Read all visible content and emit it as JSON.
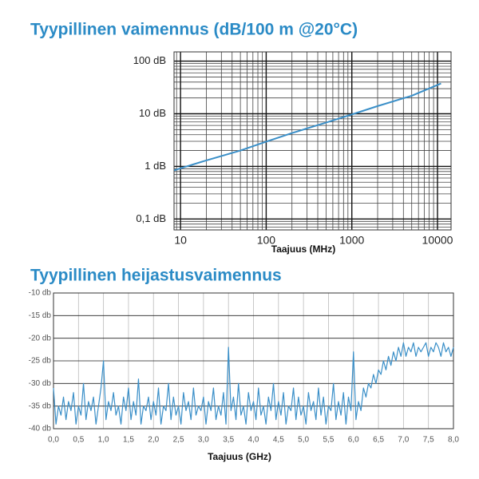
{
  "chart_data": [
    {
      "type": "line",
      "title": "Tyypillinen vaimennus (dB/100 m @20°C)",
      "xlabel": "Taajuus (MHz)",
      "xscale": "log",
      "yscale": "log",
      "grid": true,
      "minor_grid": true,
      "color": "#3a8fc8",
      "xlim": [
        8.4,
        14400
      ],
      "ylim": [
        0.062,
        150
      ],
      "xticks": [
        10,
        100,
        1000,
        10000
      ],
      "yticks": [
        {
          "value": 0.1,
          "label": "0,1 dB"
        },
        {
          "value": 1,
          "label": "1 dB"
        },
        {
          "value": 10,
          "label": "10 dB"
        },
        {
          "value": 100,
          "label": "100 dB"
        }
      ],
      "x": [
        8.4,
        10,
        20,
        50,
        100,
        200,
        500,
        1000,
        2000,
        5000,
        11000
      ],
      "values": [
        0.84,
        0.92,
        1.3,
        2.0,
        2.95,
        4.3,
        6.8,
        9.7,
        14,
        22,
        37.7
      ]
    },
    {
      "type": "line",
      "title": "Tyypillinen heijastusvaimennus",
      "xlabel": "Taajuus (GHz)",
      "xscale": "linear",
      "yscale": "linear",
      "grid": true,
      "color": "#3a8fc8",
      "xlim": [
        0,
        8
      ],
      "ylim": [
        -40,
        -10
      ],
      "xticks": [
        {
          "value": 0,
          "label": "0,0"
        },
        {
          "value": 0.5,
          "label": "0,5"
        },
        {
          "value": 1,
          "label": "1,0"
        },
        {
          "value": 1.5,
          "label": "1,5"
        },
        {
          "value": 2,
          "label": "2,0"
        },
        {
          "value": 2.5,
          "label": "2,5"
        },
        {
          "value": 3,
          "label": "3,0"
        },
        {
          "value": 3.5,
          "label": "3,5"
        },
        {
          "value": 4,
          "label": "4,0"
        },
        {
          "value": 4.5,
          "label": "4,5"
        },
        {
          "value": 5,
          "label": "5,0"
        },
        {
          "value": 5.5,
          "label": "5,5"
        },
        {
          "value": 6,
          "label": "6,0"
        },
        {
          "value": 6.5,
          "label": "6,5"
        },
        {
          "value": 7,
          "label": "7,0"
        },
        {
          "value": 7.5,
          "label": "7,5"
        },
        {
          "value": 8,
          "label": "8,0"
        }
      ],
      "yticks": [
        {
          "value": -40,
          "label": "-40 db"
        },
        {
          "value": -35,
          "label": "-35 db"
        },
        {
          "value": -30,
          "label": "-30 db"
        },
        {
          "value": -25,
          "label": "-25 db"
        },
        {
          "value": -20,
          "label": "-20 db"
        },
        {
          "value": -15,
          "label": "-15 db"
        },
        {
          "value": -10,
          "label": "-10 db"
        }
      ],
      "x": [
        0,
        0.05,
        0.1,
        0.15,
        0.2,
        0.25,
        0.3,
        0.35,
        0.4,
        0.45,
        0.5,
        0.55,
        0.6,
        0.65,
        0.7,
        0.75,
        0.8,
        0.85,
        0.9,
        0.95,
        1,
        1.05,
        1.1,
        1.15,
        1.2,
        1.25,
        1.3,
        1.35,
        1.4,
        1.45,
        1.5,
        1.55,
        1.6,
        1.65,
        1.7,
        1.75,
        1.8,
        1.85,
        1.9,
        1.95,
        2,
        2.05,
        2.1,
        2.15,
        2.2,
        2.25,
        2.3,
        2.35,
        2.4,
        2.45,
        2.5,
        2.55,
        2.6,
        2.65,
        2.7,
        2.75,
        2.8,
        2.85,
        2.9,
        2.95,
        3,
        3.05,
        3.1,
        3.15,
        3.2,
        3.25,
        3.3,
        3.35,
        3.4,
        3.45,
        3.5,
        3.55,
        3.6,
        3.65,
        3.7,
        3.75,
        3.8,
        3.85,
        3.9,
        3.95,
        4,
        4.05,
        4.1,
        4.15,
        4.2,
        4.25,
        4.3,
        4.35,
        4.4,
        4.45,
        4.5,
        4.55,
        4.6,
        4.65,
        4.7,
        4.75,
        4.8,
        4.85,
        4.9,
        4.95,
        5,
        5.05,
        5.1,
        5.15,
        5.2,
        5.25,
        5.3,
        5.35,
        5.4,
        5.45,
        5.5,
        5.55,
        5.6,
        5.65,
        5.7,
        5.75,
        5.8,
        5.85,
        5.9,
        5.95,
        6,
        6.05,
        6.1,
        6.15,
        6.2,
        6.25,
        6.3,
        6.35,
        6.4,
        6.45,
        6.5,
        6.55,
        6.6,
        6.65,
        6.7,
        6.75,
        6.8,
        6.85,
        6.9,
        6.95,
        7,
        7.05,
        7.1,
        7.15,
        7.2,
        7.25,
        7.3,
        7.35,
        7.4,
        7.45,
        7.5,
        7.55,
        7.6,
        7.65,
        7.7,
        7.75,
        7.8,
        7.85,
        7.9,
        7.95,
        8
      ],
      "values": [
        -31,
        -39,
        -35,
        -37,
        -33,
        -38,
        -34,
        -36,
        -32,
        -39,
        -35,
        -37,
        -30,
        -38,
        -34,
        -36,
        -33,
        -39,
        -35,
        -31,
        -25,
        -38,
        -34,
        -36,
        -32,
        -37,
        -35,
        -39,
        -33,
        -36,
        -31,
        -38,
        -34,
        -37,
        -29,
        -39,
        -35,
        -36,
        -33,
        -38,
        -34,
        -37,
        -31,
        -39,
        -35,
        -36,
        -30,
        -38,
        -33,
        -37,
        -35,
        -39,
        -32,
        -36,
        -34,
        -38,
        -31,
        -37,
        -35,
        -36,
        -33,
        -39,
        -34,
        -36,
        -31,
        -38,
        -35,
        -37,
        -32,
        -39,
        -22,
        -36,
        -33,
        -38,
        -30,
        -37,
        -35,
        -39,
        -32,
        -36,
        -34,
        -38,
        -31,
        -37,
        -35,
        -39,
        -33,
        -36,
        -30,
        -38,
        -34,
        -37,
        -32,
        -39,
        -35,
        -36,
        -31,
        -38,
        -33,
        -37,
        -35,
        -39,
        -32,
        -36,
        -34,
        -38,
        -31,
        -37,
        -33,
        -39,
        -35,
        -36,
        -30,
        -38,
        -34,
        -37,
        -32,
        -39,
        -33,
        -36,
        -23,
        -38,
        -34,
        -36,
        -31,
        -33,
        -30,
        -31,
        -28,
        -30,
        -27,
        -28,
        -25,
        -27,
        -24,
        -26,
        -23,
        -25,
        -22,
        -24,
        -21,
        -24,
        -22,
        -23,
        -21,
        -24,
        -22,
        -23,
        -22,
        -21,
        -24,
        -22,
        -23,
        -21,
        -22,
        -24,
        -21,
        -23,
        -22,
        -24,
        -22
      ]
    }
  ]
}
